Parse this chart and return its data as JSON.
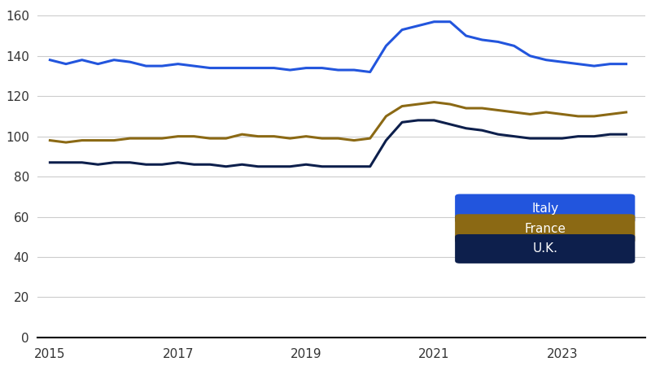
{
  "italy_color": "#2255dd",
  "france_color": "#8B6914",
  "uk_color": "#0d1f4c",
  "background_color": "#ffffff",
  "grid_color": "#cccccc",
  "axis_line_color": "#000000",
  "ylim": [
    0,
    165
  ],
  "yticks": [
    0,
    20,
    40,
    60,
    80,
    100,
    120,
    140,
    160
  ],
  "xticks": [
    2015,
    2017,
    2019,
    2021,
    2023
  ],
  "legend_labels": [
    "Italy",
    "France",
    "U.K."
  ],
  "legend_colors": [
    "#2255dd",
    "#8B6914",
    "#0d1f4c"
  ],
  "italy": {
    "x": [
      2015.0,
      2015.25,
      2015.5,
      2015.75,
      2016.0,
      2016.25,
      2016.5,
      2016.75,
      2017.0,
      2017.25,
      2017.5,
      2017.75,
      2018.0,
      2018.25,
      2018.5,
      2018.75,
      2019.0,
      2019.25,
      2019.5,
      2019.75,
      2020.0,
      2020.25,
      2020.5,
      2020.75,
      2021.0,
      2021.25,
      2021.5,
      2021.75,
      2022.0,
      2022.25,
      2022.5,
      2022.75,
      2023.0,
      2023.25,
      2023.5,
      2023.75,
      2024.0
    ],
    "y": [
      138,
      136,
      138,
      136,
      138,
      137,
      135,
      135,
      136,
      135,
      134,
      134,
      134,
      134,
      134,
      133,
      134,
      134,
      133,
      133,
      132,
      145,
      153,
      155,
      157,
      157,
      150,
      148,
      147,
      145,
      140,
      138,
      137,
      136,
      135,
      136,
      136
    ]
  },
  "france": {
    "x": [
      2015.0,
      2015.25,
      2015.5,
      2015.75,
      2016.0,
      2016.25,
      2016.5,
      2016.75,
      2017.0,
      2017.25,
      2017.5,
      2017.75,
      2018.0,
      2018.25,
      2018.5,
      2018.75,
      2019.0,
      2019.25,
      2019.5,
      2019.75,
      2020.0,
      2020.25,
      2020.5,
      2020.75,
      2021.0,
      2021.25,
      2021.5,
      2021.75,
      2022.0,
      2022.25,
      2022.5,
      2022.75,
      2023.0,
      2023.25,
      2023.5,
      2023.75,
      2024.0
    ],
    "y": [
      98,
      97,
      98,
      98,
      98,
      99,
      99,
      99,
      100,
      100,
      99,
      99,
      101,
      100,
      100,
      99,
      100,
      99,
      99,
      98,
      99,
      110,
      115,
      116,
      117,
      116,
      114,
      114,
      113,
      112,
      111,
      112,
      111,
      110,
      110,
      111,
      112
    ]
  },
  "uk": {
    "x": [
      2015.0,
      2015.25,
      2015.5,
      2015.75,
      2016.0,
      2016.25,
      2016.5,
      2016.75,
      2017.0,
      2017.25,
      2017.5,
      2017.75,
      2018.0,
      2018.25,
      2018.5,
      2018.75,
      2019.0,
      2019.25,
      2019.5,
      2019.75,
      2020.0,
      2020.25,
      2020.5,
      2020.75,
      2021.0,
      2021.25,
      2021.5,
      2021.75,
      2022.0,
      2022.25,
      2022.5,
      2022.75,
      2023.0,
      2023.25,
      2023.5,
      2023.75,
      2024.0
    ],
    "y": [
      87,
      87,
      87,
      86,
      87,
      87,
      86,
      86,
      87,
      86,
      86,
      85,
      86,
      85,
      85,
      85,
      86,
      85,
      85,
      85,
      85,
      98,
      107,
      108,
      108,
      106,
      104,
      103,
      101,
      100,
      99,
      99,
      99,
      100,
      100,
      101,
      101
    ]
  }
}
